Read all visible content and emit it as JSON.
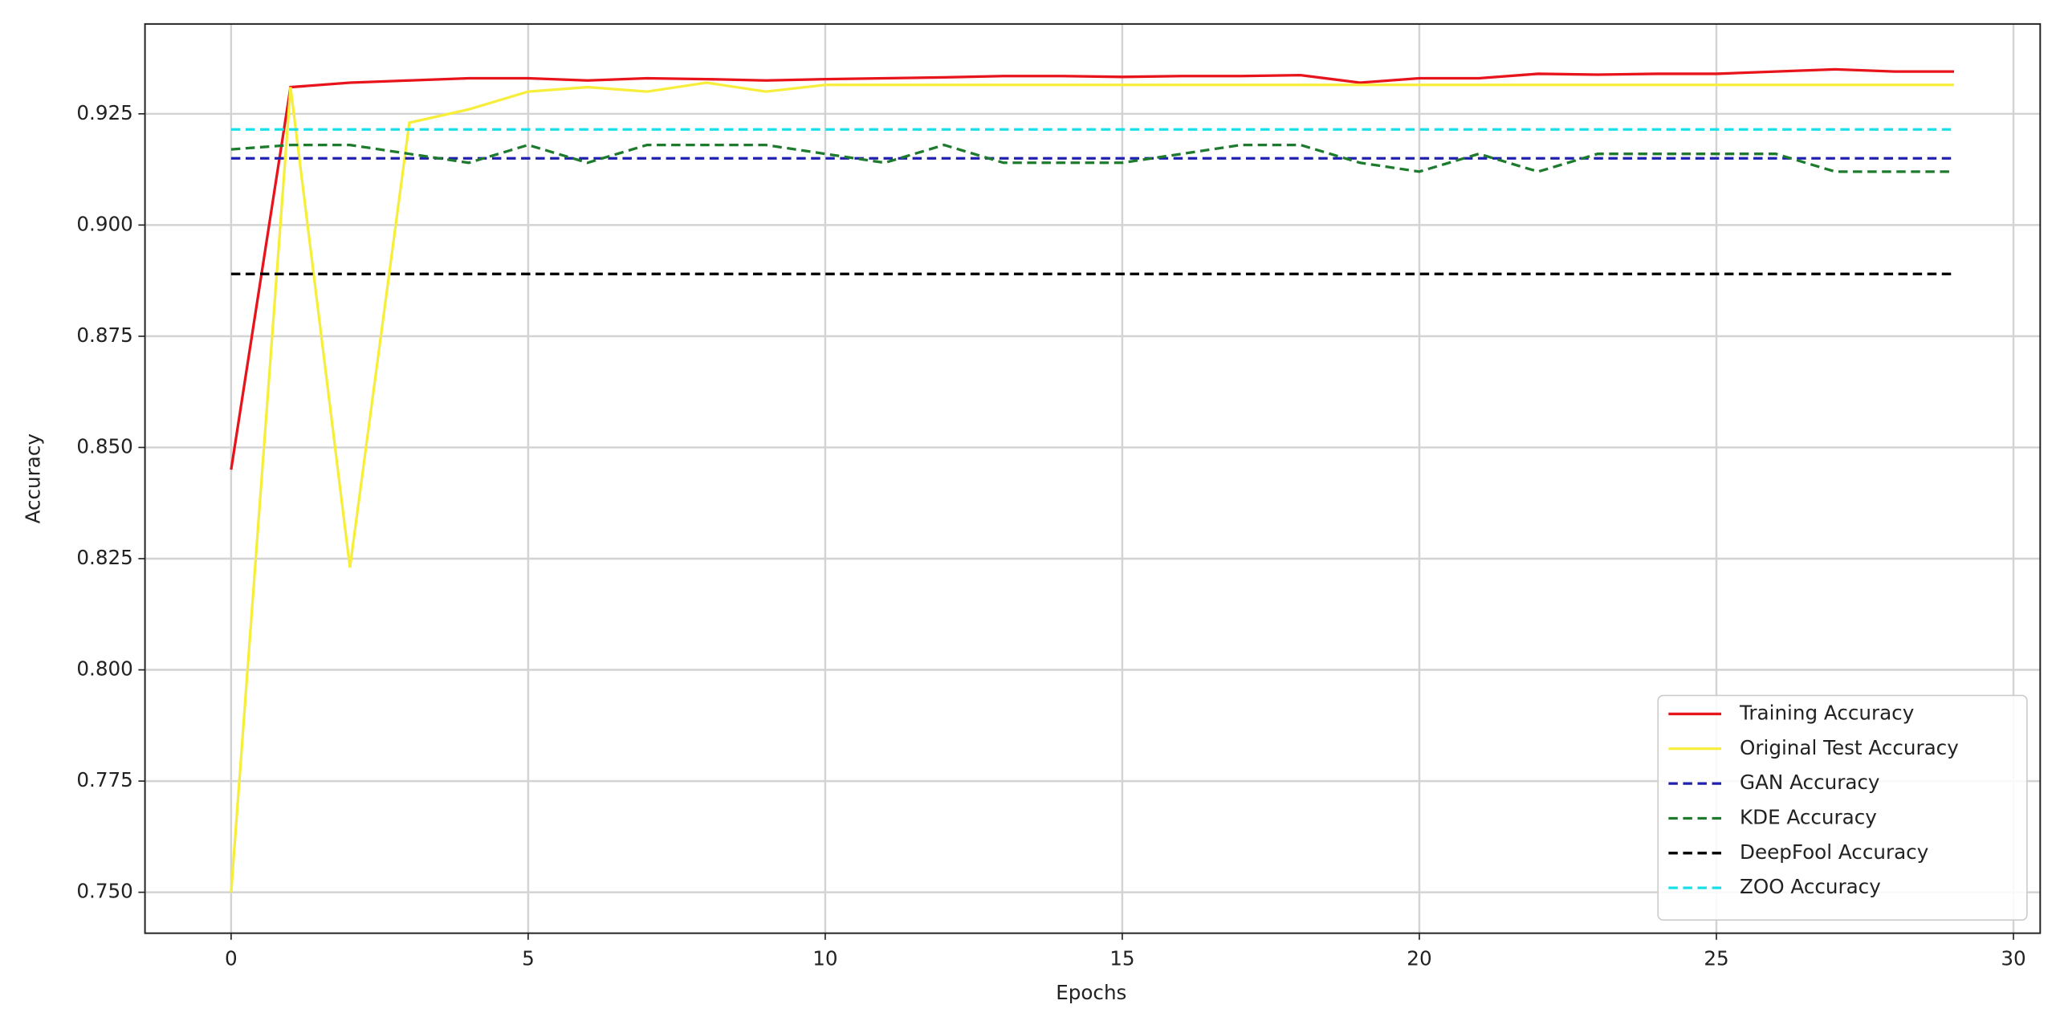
{
  "chart_data": {
    "type": "line",
    "xlabel": "Epochs",
    "ylabel": "Accuracy",
    "x": [
      0,
      1,
      2,
      3,
      4,
      5,
      6,
      7,
      8,
      9,
      10,
      11,
      12,
      13,
      14,
      15,
      16,
      17,
      18,
      19,
      20,
      21,
      22,
      23,
      24,
      25,
      26,
      27,
      28,
      29
    ],
    "series": [
      {
        "name": "Training Accuracy",
        "color": "#e8141c",
        "style": "solid",
        "values": [
          0.845,
          0.931,
          0.932,
          0.9325,
          0.933,
          0.933,
          0.9325,
          0.933,
          0.9328,
          0.9325,
          0.9328,
          0.933,
          0.9332,
          0.9335,
          0.9335,
          0.9333,
          0.9335,
          0.9335,
          0.9337,
          0.932,
          0.933,
          0.933,
          0.934,
          0.9338,
          0.934,
          0.934,
          0.9345,
          0.935,
          0.9345,
          0.9345
        ]
      },
      {
        "name": "Original Test Accuracy",
        "color": "#f7ee3c",
        "style": "solid",
        "values": [
          0.75,
          0.931,
          0.823,
          0.923,
          0.926,
          0.93,
          0.931,
          0.93,
          0.932,
          0.93,
          0.9315,
          0.9315,
          0.9315,
          0.9315,
          0.9315,
          0.9315,
          0.9315,
          0.9315,
          0.9315,
          0.9315,
          0.9315,
          0.9315,
          0.9315,
          0.9315,
          0.9315,
          0.9315,
          0.9315,
          0.9315,
          0.9315,
          0.9315
        ]
      },
      {
        "name": "GAN Accuracy",
        "color": "#2020b0",
        "style": "dashed",
        "values": [
          0.915,
          0.915,
          0.915,
          0.915,
          0.915,
          0.915,
          0.915,
          0.915,
          0.915,
          0.915,
          0.915,
          0.915,
          0.915,
          0.915,
          0.915,
          0.915,
          0.915,
          0.915,
          0.915,
          0.915,
          0.915,
          0.915,
          0.915,
          0.915,
          0.915,
          0.915,
          0.915,
          0.915,
          0.915,
          0.915
        ]
      },
      {
        "name": "KDE Accuracy",
        "color": "#1e7b2e",
        "style": "dashed",
        "values": [
          0.917,
          0.918,
          0.918,
          0.916,
          0.914,
          0.918,
          0.914,
          0.918,
          0.918,
          0.918,
          0.916,
          0.914,
          0.918,
          0.914,
          0.914,
          0.914,
          0.916,
          0.918,
          0.918,
          0.914,
          0.912,
          0.916,
          0.912,
          0.916,
          0.916,
          0.916,
          0.916,
          0.912,
          0.912,
          0.912
        ]
      },
      {
        "name": "DeepFool Accuracy",
        "color": "#000000",
        "style": "dashed",
        "values": [
          0.889,
          0.889,
          0.889,
          0.889,
          0.889,
          0.889,
          0.889,
          0.889,
          0.889,
          0.889,
          0.889,
          0.889,
          0.889,
          0.889,
          0.889,
          0.889,
          0.889,
          0.889,
          0.889,
          0.889,
          0.889,
          0.889,
          0.889,
          0.889,
          0.889,
          0.889,
          0.889,
          0.889,
          0.889,
          0.889
        ]
      },
      {
        "name": "ZOO Accuracy",
        "color": "#18e0e8",
        "style": "dashed",
        "values": [
          0.9215,
          0.9215,
          0.9215,
          0.9215,
          0.9215,
          0.9215,
          0.9215,
          0.9215,
          0.9215,
          0.9215,
          0.9215,
          0.9215,
          0.9215,
          0.9215,
          0.9215,
          0.9215,
          0.9215,
          0.9215,
          0.9215,
          0.9215,
          0.9215,
          0.9215,
          0.9215,
          0.9215,
          0.9215,
          0.9215,
          0.9215,
          0.9215,
          0.9215,
          0.9215
        ]
      }
    ],
    "xlim": [
      -1.45,
      30.45
    ],
    "xticks": [
      0,
      5,
      10,
      15,
      20,
      25,
      30
    ],
    "ylim": [
      0.7408,
      0.9452
    ],
    "yticks": [
      {
        "value": 0.75,
        "label": "0.750"
      },
      0.775,
      {
        "value": 0.8,
        "label": "0.800"
      },
      0.825,
      {
        "value": 0.85,
        "label": "0.850"
      },
      0.875,
      {
        "value": 0.9,
        "label": "0.900"
      },
      0.925
    ],
    "grid": true,
    "legend": "lower right"
  }
}
